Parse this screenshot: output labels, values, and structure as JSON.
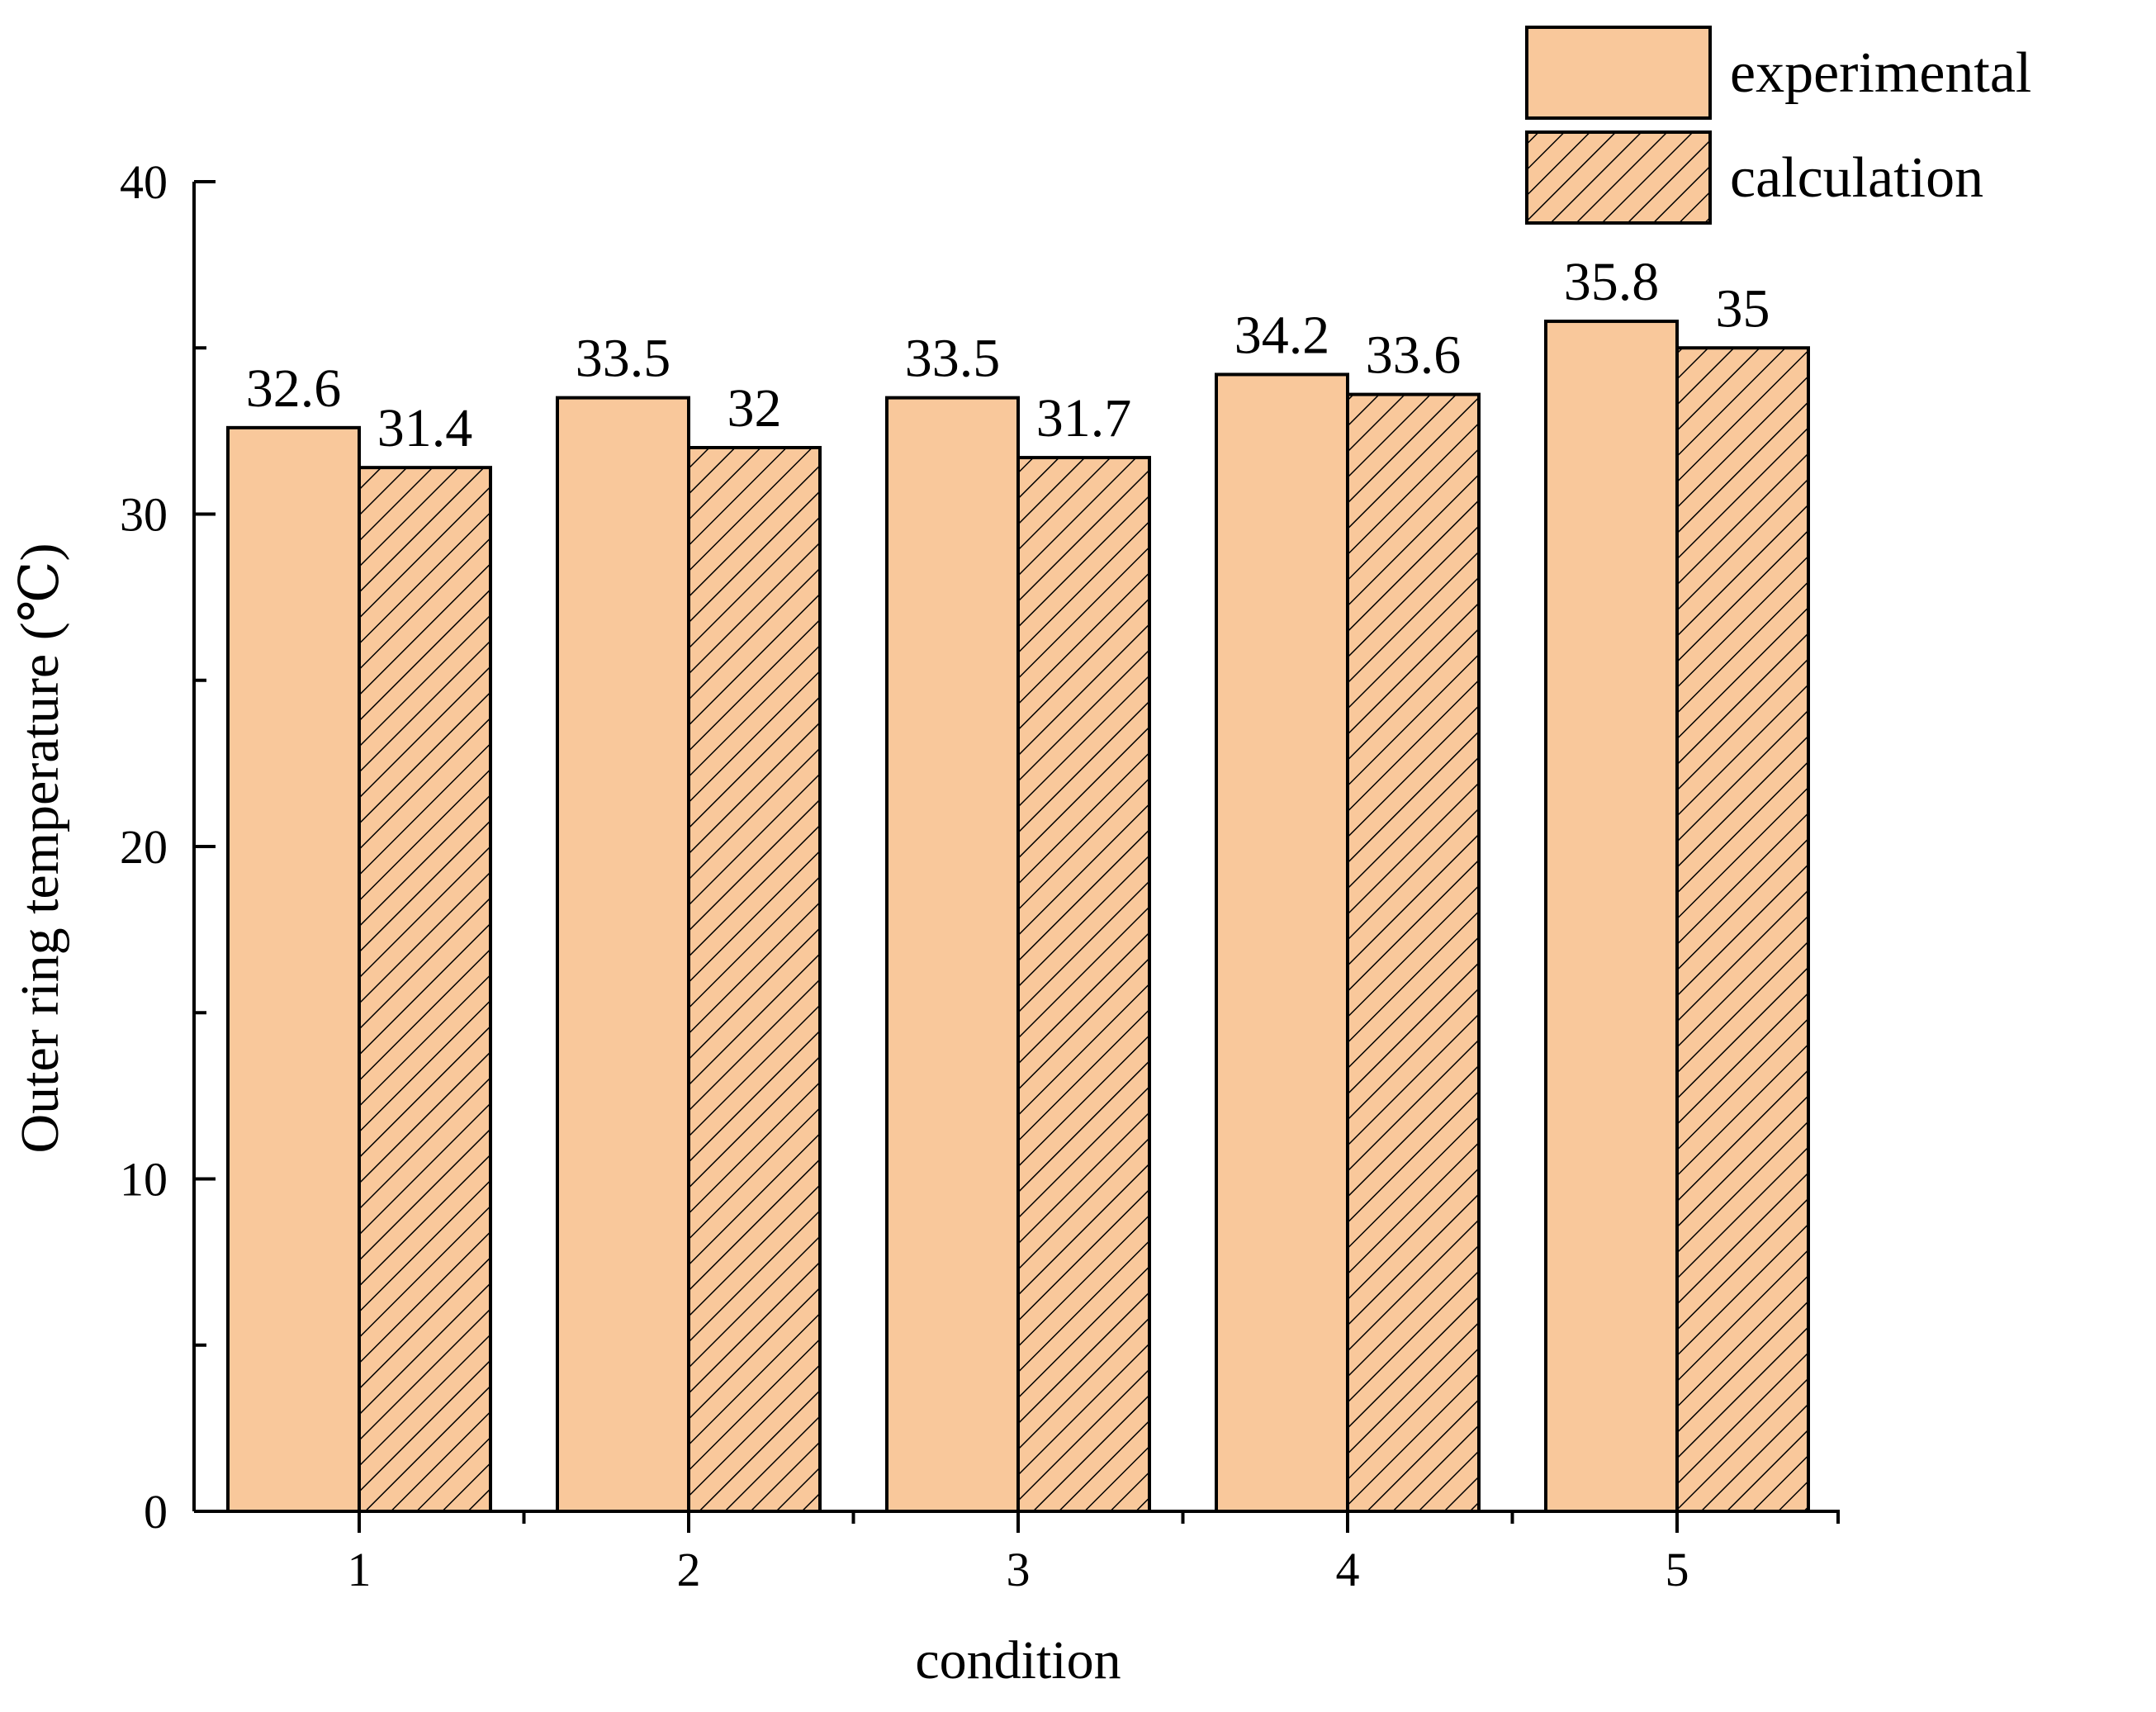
{
  "chart_data": {
    "type": "bar",
    "title": "",
    "xlabel": "condition",
    "ylabel": "Outer ring temperature (℃)",
    "categories": [
      "1",
      "2",
      "3",
      "4",
      "5"
    ],
    "series": [
      {
        "name": "experimental",
        "values": [
          32.6,
          33.5,
          33.5,
          34.2,
          35.8
        ],
        "labels": [
          "32.6",
          "33.5",
          "33.5",
          "34.2",
          "35.8"
        ],
        "pattern": "solid"
      },
      {
        "name": "calculation",
        "values": [
          31.4,
          32,
          31.7,
          33.6,
          35
        ],
        "labels": [
          "31.4",
          "32",
          "31.7",
          "33.6",
          "35"
        ],
        "pattern": "hatched"
      }
    ],
    "ylim": [
      0,
      40
    ],
    "yticks": [
      "0",
      "10",
      "20",
      "30",
      "40"
    ],
    "grid": false,
    "legend_position": "top-right"
  },
  "colors": {
    "bar_fill": "#F9C89B",
    "stroke": "#000000"
  }
}
